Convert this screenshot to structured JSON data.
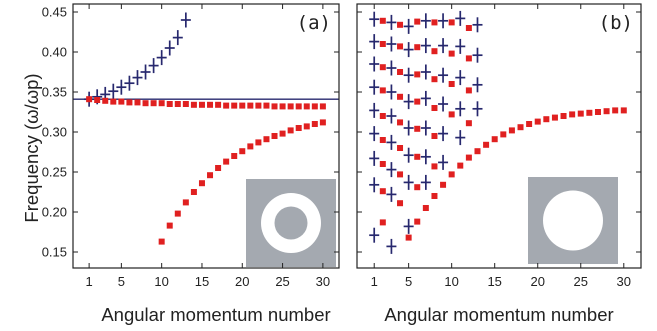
{
  "chart_data": [
    {
      "type": "scatter",
      "panel_label": "(a)",
      "xlabel": "Angular momentum number",
      "ylabel": "Frequency (ω/ωp)",
      "xlim": [
        -1,
        32
      ],
      "ylim": [
        0.13,
        0.46
      ],
      "xticks": [
        1,
        5,
        10,
        15,
        20,
        25,
        30
      ],
      "yticks": [
        0.15,
        0.2,
        0.25,
        0.3,
        0.35,
        0.4,
        0.45
      ],
      "ytick_labels": [
        "0.15",
        "0.20",
        "0.25",
        "0.30",
        "0.35",
        "0.40",
        "0.45"
      ],
      "hline": 0.341,
      "inset": "ring",
      "series": [
        {
          "marker": "cross",
          "color": "#27286e",
          "x": [
            1,
            2,
            3,
            4,
            5,
            6,
            7,
            8,
            9,
            10,
            11,
            12,
            13
          ],
          "y": [
            0.341,
            0.344,
            0.347,
            0.351,
            0.356,
            0.361,
            0.368,
            0.375,
            0.383,
            0.393,
            0.405,
            0.418,
            0.44
          ]
        },
        {
          "marker": "square",
          "color": "#e02020",
          "x": [
            1,
            2,
            3,
            4,
            5,
            6,
            7,
            8,
            9,
            10,
            11,
            12,
            13,
            14,
            15,
            16,
            17,
            18,
            19,
            20,
            21,
            22,
            23,
            24,
            25,
            26,
            27,
            28,
            29,
            30
          ],
          "y": [
            0.341,
            0.34,
            0.339,
            0.338,
            0.338,
            0.337,
            0.337,
            0.336,
            0.336,
            0.336,
            0.335,
            0.335,
            0.335,
            0.334,
            0.334,
            0.334,
            0.334,
            0.333,
            0.333,
            0.333,
            0.333,
            0.333,
            0.333,
            0.332,
            0.332,
            0.332,
            0.332,
            0.332,
            0.332,
            0.332
          ]
        },
        {
          "marker": "square",
          "color": "#e02020",
          "x": [
            10,
            11,
            12,
            13,
            14,
            15,
            16,
            17,
            18,
            19,
            20,
            21,
            22,
            23,
            24,
            25,
            26,
            27,
            28,
            29,
            30
          ],
          "y": [
            0.163,
            0.183,
            0.198,
            0.212,
            0.225,
            0.236,
            0.246,
            0.255,
            0.263,
            0.27,
            0.276,
            0.282,
            0.287,
            0.291,
            0.295,
            0.298,
            0.302,
            0.305,
            0.307,
            0.31,
            0.312
          ]
        }
      ]
    },
    {
      "type": "scatter",
      "panel_label": "(b)",
      "xlabel": "Angular momentum number",
      "ylabel": "",
      "xlim": [
        -1,
        32
      ],
      "ylim": [
        0.13,
        0.46
      ],
      "xticks": [
        1,
        5,
        10,
        15,
        20,
        25,
        30
      ],
      "yticks": [
        0.15,
        0.2,
        0.25,
        0.3,
        0.35,
        0.4,
        0.45
      ],
      "ytick_labels": [
        "",
        "",
        "",
        "",
        "",
        "",
        ""
      ],
      "hline": null,
      "inset": "disk",
      "series": [
        {
          "marker": "cross",
          "color": "#27286e",
          "x": [
            1,
            1,
            1,
            1,
            1,
            1,
            1,
            1,
            1,
            3,
            3,
            3,
            3,
            3,
            3,
            3,
            3,
            3,
            5,
            5,
            5,
            5,
            5,
            5,
            5,
            5,
            7,
            7,
            7,
            7,
            7,
            7,
            7,
            9,
            9,
            9,
            9,
            9,
            9,
            11,
            11,
            11,
            11,
            11,
            13,
            13,
            13,
            13
          ],
          "y": [
            0.441,
            0.413,
            0.385,
            0.356,
            0.327,
            0.298,
            0.267,
            0.234,
            0.171,
            0.437,
            0.41,
            0.38,
            0.35,
            0.32,
            0.287,
            0.253,
            0.222,
            0.157,
            0.432,
            0.403,
            0.371,
            0.338,
            0.305,
            0.271,
            0.237,
            0.182,
            0.439,
            0.408,
            0.375,
            0.342,
            0.305,
            0.269,
            0.237,
            0.439,
            0.408,
            0.371,
            0.335,
            0.298,
            0.262,
            0.442,
            0.407,
            0.368,
            0.329,
            0.293,
            0.434,
            0.396,
            0.359,
            0.329
          ]
        },
        {
          "marker": "square",
          "color": "#e02020",
          "x": [
            2,
            2,
            2,
            2,
            2,
            2,
            2,
            2,
            2,
            4,
            4,
            4,
            4,
            4,
            4,
            4,
            4,
            6,
            6,
            6,
            6,
            6,
            6,
            6,
            8,
            8,
            8,
            8,
            8,
            8,
            10,
            10,
            10,
            10,
            12,
            12,
            12,
            12
          ],
          "y": [
            0.439,
            0.41,
            0.381,
            0.352,
            0.32,
            0.29,
            0.26,
            0.226,
            0.187,
            0.434,
            0.407,
            0.375,
            0.344,
            0.312,
            0.28,
            0.247,
            0.211,
            0.438,
            0.406,
            0.372,
            0.338,
            0.304,
            0.269,
            0.231,
            0.437,
            0.401,
            0.366,
            0.33,
            0.295,
            0.257,
            0.437,
            0.398,
            0.36,
            0.322,
            0.43,
            0.392,
            0.352,
            0.311
          ]
        },
        {
          "marker": "square",
          "color": "#e02020",
          "x": [
            5,
            6,
            7,
            8,
            9,
            10,
            11,
            12,
            13,
            14,
            15,
            16,
            17,
            18,
            19,
            20,
            21,
            22,
            23,
            24,
            25,
            26,
            27,
            28,
            29,
            30
          ],
          "y": [
            0.168,
            0.188,
            0.205,
            0.22,
            0.234,
            0.247,
            0.258,
            0.268,
            0.276,
            0.284,
            0.291,
            0.297,
            0.302,
            0.306,
            0.31,
            0.313,
            0.316,
            0.318,
            0.32,
            0.322,
            0.323,
            0.324,
            0.325,
            0.326,
            0.327,
            0.327
          ]
        }
      ]
    }
  ]
}
